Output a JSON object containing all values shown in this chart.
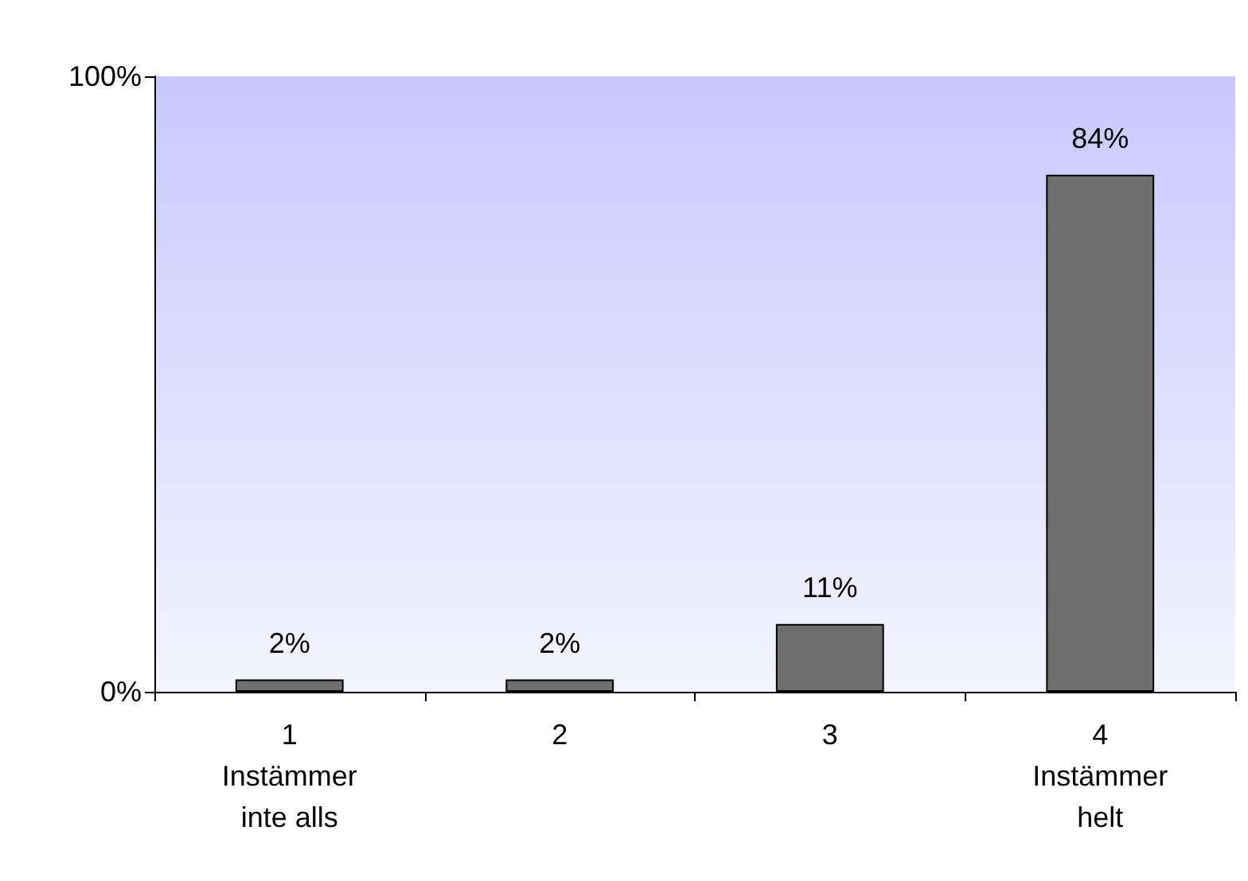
{
  "chart_data": {
    "type": "bar",
    "categories": [
      "1\nInstämmer\ninte alls",
      "2",
      "3",
      "4\nInstämmer\nhelt"
    ],
    "values": [
      2,
      2,
      11,
      84
    ],
    "value_labels": [
      "2%",
      "2%",
      "11%",
      "84%"
    ],
    "color": "#6e6e6e",
    "ylim": [
      0,
      100
    ],
    "yticks": [
      {
        "value": 0,
        "label": "0%"
      },
      {
        "value": 100,
        "label": "100%"
      }
    ],
    "grid": false
  }
}
